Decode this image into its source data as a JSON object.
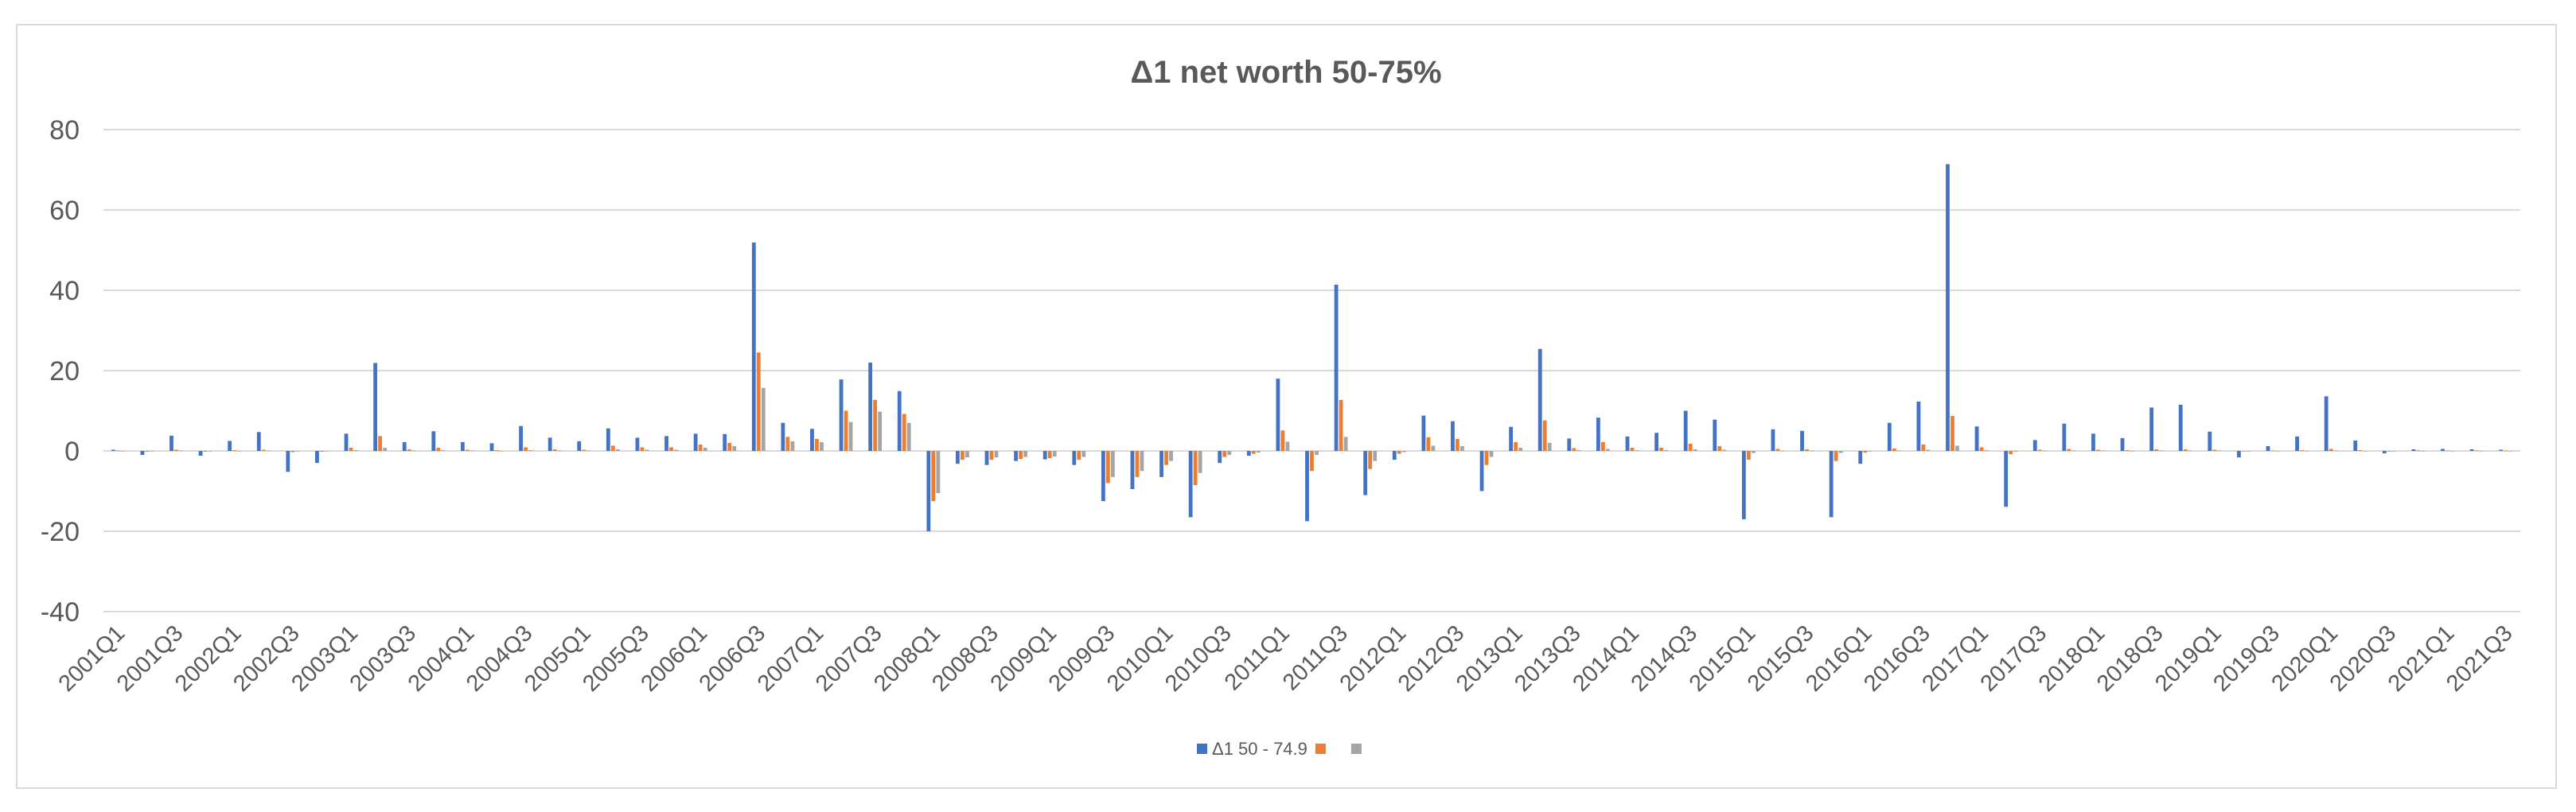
{
  "chart_data": {
    "type": "bar",
    "title": "Δ1 net worth 50-75%",
    "xlabel": "",
    "ylabel": "",
    "ylim": [
      -40,
      80
    ],
    "yticks": [
      -40,
      -20,
      0,
      20,
      40,
      60,
      80
    ],
    "grid": true,
    "legend_position": "bottom",
    "categories": [
      "2001Q1",
      "2001Q2",
      "2001Q3",
      "2001Q4",
      "2002Q1",
      "2002Q2",
      "2002Q3",
      "2002Q4",
      "2003Q1",
      "2003Q2",
      "2003Q3",
      "2003Q4",
      "2004Q1",
      "2004Q2",
      "2004Q3",
      "2004Q4",
      "2005Q1",
      "2005Q2",
      "2005Q3",
      "2005Q4",
      "2006Q1",
      "2006Q2",
      "2006Q3",
      "2006Q4",
      "2007Q1",
      "2007Q2",
      "2007Q3",
      "2007Q4",
      "2008Q1",
      "2008Q2",
      "2008Q3",
      "2008Q4",
      "2009Q1",
      "2009Q2",
      "2009Q3",
      "2009Q4",
      "2010Q1",
      "2010Q2",
      "2010Q3",
      "2010Q4",
      "2011Q1",
      "2011Q2",
      "2011Q3",
      "2011Q4",
      "2012Q1",
      "2012Q2",
      "2012Q3",
      "2012Q4",
      "2013Q1",
      "2013Q2",
      "2013Q3",
      "2013Q4",
      "2014Q1",
      "2014Q2",
      "2014Q3",
      "2014Q4",
      "2015Q1",
      "2015Q2",
      "2015Q3",
      "2015Q4",
      "2016Q1",
      "2016Q2",
      "2016Q3",
      "2016Q4",
      "2017Q1",
      "2017Q2",
      "2017Q3",
      "2017Q4",
      "2018Q1",
      "2018Q2",
      "2018Q3",
      "2018Q4",
      "2019Q1",
      "2019Q2",
      "2019Q3",
      "2019Q4",
      "2020Q1",
      "2020Q2",
      "2020Q3",
      "2020Q4",
      "2021Q1",
      "2021Q2",
      "2021Q3"
    ],
    "tick_labels": [
      "2001Q1",
      "2001Q3",
      "2002Q1",
      "2002Q3",
      "2003Q1",
      "2003Q3",
      "2004Q1",
      "2004Q3",
      "2005Q1",
      "2005Q3",
      "2006Q1",
      "2006Q3",
      "2007Q1",
      "2007Q3",
      "2008Q1",
      "2008Q3",
      "2009Q1",
      "2009Q3",
      "2010Q1",
      "2010Q3",
      "2011Q1",
      "2011Q3",
      "2012Q1",
      "2012Q3",
      "2013Q1",
      "2013Q3",
      "2014Q1",
      "2014Q3",
      "2015Q1",
      "2015Q3",
      "2016Q1",
      "2016Q3",
      "2017Q1",
      "2017Q3",
      "2018Q1",
      "2018Q3",
      "2019Q1",
      "2019Q3",
      "2020Q1",
      "2020Q3",
      "2021Q1",
      "2021Q3"
    ],
    "series": [
      {
        "name": "Δ1 50 - 74.9",
        "color": "#4472c4",
        "values": [
          0.3,
          -1.0,
          3.8,
          -1.2,
          2.5,
          4.7,
          -5.2,
          -3.0,
          4.3,
          21.9,
          2.2,
          4.9,
          2.2,
          1.9,
          6.2,
          3.3,
          2.4,
          5.6,
          3.3,
          3.7,
          4.3,
          4.2,
          51.9,
          7.0,
          5.5,
          17.8,
          22.0,
          14.9,
          -20.0,
          -3.2,
          -3.5,
          -2.5,
          -2.1,
          -3.5,
          -12.5,
          -9.5,
          -6.5,
          -16.5,
          -3.0,
          -1.2,
          18.0,
          -17.5,
          41.4,
          -11.0,
          -2.2,
          8.8,
          7.4,
          -10.0,
          6.0,
          25.4,
          3.1,
          8.3,
          3.6,
          4.5,
          10.0,
          7.8,
          -17.0,
          5.4,
          5.0,
          -16.5,
          -3.2,
          7.0,
          12.3,
          71.4,
          6.1,
          -13.9,
          2.7,
          6.8,
          4.3,
          3.2,
          10.8,
          11.5,
          4.8,
          -1.6,
          1.2,
          3.6,
          13.6,
          2.6,
          -0.6,
          0.4,
          0.5,
          0.4,
          0.3
        ]
      },
      {
        "name": "",
        "color": "#ed7d31",
        "values": [
          0.1,
          -0.2,
          0.3,
          -0.2,
          0.2,
          0.3,
          -0.3,
          -0.2,
          0.8,
          3.7,
          0.4,
          0.8,
          0.3,
          0.2,
          0.9,
          0.4,
          0.3,
          1.3,
          0.9,
          0.9,
          1.6,
          2.0,
          24.5,
          3.5,
          3.0,
          10.0,
          12.7,
          9.2,
          -12.5,
          -2.2,
          -2.2,
          -2.0,
          -1.8,
          -2.2,
          -8.0,
          -6.5,
          -3.5,
          -8.5,
          -1.5,
          -0.7,
          5.1,
          -5.0,
          12.7,
          -4.5,
          -0.7,
          3.4,
          3.0,
          -3.5,
          2.2,
          7.6,
          0.7,
          2.2,
          0.8,
          0.8,
          1.8,
          1.2,
          -2.2,
          0.5,
          0.4,
          -2.5,
          -0.4,
          0.6,
          1.6,
          8.7,
          0.9,
          -0.8,
          0.3,
          0.5,
          0.3,
          0.2,
          0.4,
          0.4,
          0.3,
          -0.1,
          0.1,
          0.2,
          0.5,
          0.2,
          -0.1,
          0.1,
          0.1,
          0.1,
          0.1
        ]
      },
      {
        "name": "",
        "color": "#a5a5a5",
        "values": [
          0.0,
          0.0,
          0.1,
          0.0,
          0.0,
          0.1,
          -0.1,
          0.0,
          0.2,
          0.8,
          0.1,
          0.2,
          0.1,
          0.0,
          0.2,
          0.1,
          0.1,
          0.4,
          0.3,
          0.3,
          0.8,
          1.2,
          15.7,
          2.4,
          2.2,
          7.2,
          9.8,
          7.0,
          -10.5,
          -1.6,
          -1.6,
          -1.5,
          -1.4,
          -1.5,
          -6.5,
          -5.0,
          -2.5,
          -5.5,
          -1.0,
          -0.4,
          2.3,
          -1.0,
          3.5,
          -2.5,
          -0.3,
          1.3,
          1.2,
          -1.5,
          0.8,
          2.0,
          0.2,
          0.5,
          0.2,
          0.2,
          0.4,
          0.3,
          -0.5,
          0.1,
          0.1,
          -0.5,
          -0.1,
          0.1,
          0.3,
          1.3,
          0.2,
          -0.2,
          0.1,
          0.1,
          0.1,
          0.0,
          0.1,
          0.1,
          0.1,
          0.0,
          0.0,
          0.0,
          0.1,
          0.0,
          0.0,
          0.0,
          0.0,
          0.0,
          0.0
        ]
      }
    ]
  }
}
